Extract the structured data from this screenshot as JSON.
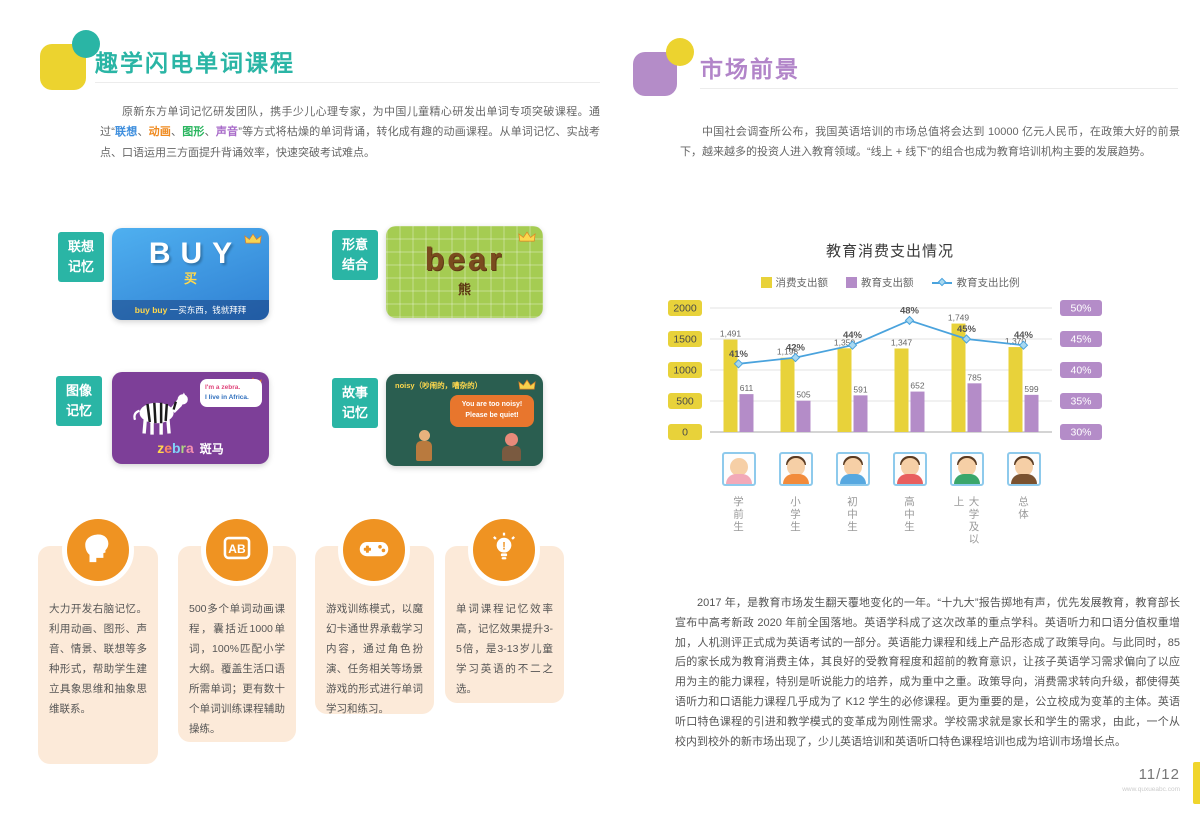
{
  "colors": {
    "teal": "#2ab5a5",
    "purple": "#b285c9",
    "yellow": "#ecd32f",
    "orange": "#ef9322",
    "bar_yellow": "#e8d23a",
    "bar_purple": "#b48cc8",
    "line_blue": "#4aa3dd"
  },
  "left_page": {
    "title": "趣学闪电单词课程",
    "intro": {
      "part1": "原新东方单词记忆研发团队，携手少儿心理专家，为中国儿童精心研发出单词专项突破课程。通过“",
      "highlights": [
        {
          "text": "联想",
          "color": "#3f8fde"
        },
        {
          "text": "动画",
          "color": "#ef8a1f"
        },
        {
          "text": "图形",
          "color": "#2ab55f"
        },
        {
          "text": "声音",
          "color": "#a86bc9"
        }
      ],
      "part2": "”等方式将枯燥的单词背诵，转化成有趣的动画课程。从单词记忆、实战考点、口语运用三方面提升背诵效率，快速突破考试难点。"
    },
    "cards": [
      {
        "label": [
          "联想",
          "记忆"
        ],
        "word": "BUY",
        "cn": "买",
        "caption_en": "buy buy",
        "caption_cn": " 一买东西，钱就拜拜"
      },
      {
        "label": [
          "形意",
          "结合"
        ],
        "word": "bear",
        "cn": "熊"
      },
      {
        "label": [
          "图像",
          "记忆"
        ],
        "word": "zebra",
        "cn": "斑马",
        "bubble_line1": "I'm a zebra.",
        "bubble_line2": "I live in Africa.",
        "letter_colors": [
          "#ffd84d",
          "#ff8a65",
          "#81d4fa",
          "#aed581",
          "#f48fb1"
        ]
      },
      {
        "label": [
          "故事",
          "记忆"
        ],
        "tag": "noisy（吵闹的，嘈杂的）",
        "bubble_line1": "You are too noisy!",
        "bubble_line2": "Please be quiet!"
      }
    ],
    "features": [
      {
        "icon": "head-profile-icon",
        "text": "大力开发右脑记忆。利用动画、图形、声音、情景、联想等多种形式，帮助学生建立具象思维和抽象思维联系。"
      },
      {
        "icon": "ab-flashcard-icon",
        "text": "500多个单词动画课程，囊括近1000单词，100%匹配小学大纲。覆盖生活口语所需单词；更有数十个单词训练课程辅助操练。"
      },
      {
        "icon": "gamepad-icon",
        "text": "游戏训练模式，以魔幻卡通世界承载学习内容，通过角色扮演、任务相关等场景游戏的形式进行单词学习和练习。"
      },
      {
        "icon": "lightbulb-icon",
        "text": "单词课程记忆效率高，记忆效果提升3-5倍，是3-13岁儿童学习英语的不二之选。"
      }
    ]
  },
  "right_page": {
    "title": "市场前景",
    "intro": "中国社会调查所公布，我国英语培训的市场总值将会达到 10000 亿元人民币，在政策大好的前景下，越来越多的投资人进入教育领域。“线上 + 线下”的组合也成为教育培训机构主要的发展趋势。",
    "body": "2017 年，是教育市场发生翻天覆地变化的一年。“十九大”报告掷地有声，优先发展教育，教育部长宣布中高考新政 2020 年前全国落地。英语学科成了这次改革的重点学科。英语听力和口语分值权重增加，人机测评正式成为英语考试的一部分。英语能力课程和线上产品形态成了政策导向。与此同时，85 后的家长成为教育消费主体，其良好的受教育程度和超前的教育意识，让孩子英语学习需求偏向了以应用为主的能力课程，特别是听说能力的培养，成为重中之重。政策导向，消费需求转向升级，都使得英语听力和口语能力课程几乎成为了 K12 学生的必修课程。更为重要的是，公立校成为变革的主体。英语听口特色课程的引进和教学模式的变革成为刚性需求。学校需求就是家长和学生的需求，由此，一个从校内到校外的新市场出现了，少儿英语培训和英语听口特色课程培训也成为培训市场增长点。",
    "footer": {
      "page": "11/12",
      "site": "www.quxueabc.com"
    }
  },
  "chart_data": {
    "type": "bar+line",
    "title": "教育消费支出情况",
    "categories": [
      "学前生",
      "小学生",
      "初中生",
      "高中生",
      "大学及以上",
      "总体"
    ],
    "series": [
      {
        "name": "消费支出额",
        "type": "bar",
        "color": "#e8d23a",
        "values": [
          1491,
          1198,
          1350,
          1347,
          1749,
          1370
        ],
        "labels": [
          "1,491",
          "1,198",
          "1,350",
          "1,347",
          "1,749",
          "1,370"
        ]
      },
      {
        "name": "教育支出额",
        "type": "bar",
        "color": "#b48cc8",
        "values": [
          611,
          505,
          591,
          652,
          785,
          599
        ],
        "labels": [
          "611",
          "505",
          "591",
          "652",
          "785",
          "599"
        ]
      },
      {
        "name": "教育支出比例",
        "type": "line",
        "color": "#4aa3dd",
        "marker_fill": "#a8d8f0",
        "values": [
          41,
          42,
          44,
          48,
          45,
          44
        ],
        "labels": [
          "41%",
          "42%",
          "44%",
          "48%",
          "45%",
          "44%"
        ]
      }
    ],
    "left_axis": {
      "max": 2000,
      "ticks": [
        0,
        500,
        1000,
        1500,
        2000
      ],
      "box_color": "#e8d23a"
    },
    "right_axis": {
      "min": 30,
      "max": 50,
      "ticks": [
        "30%",
        "35%",
        "40%",
        "45%",
        "50%"
      ],
      "box_color": "#b48cc8"
    },
    "grid": true,
    "legend_position": "top"
  }
}
